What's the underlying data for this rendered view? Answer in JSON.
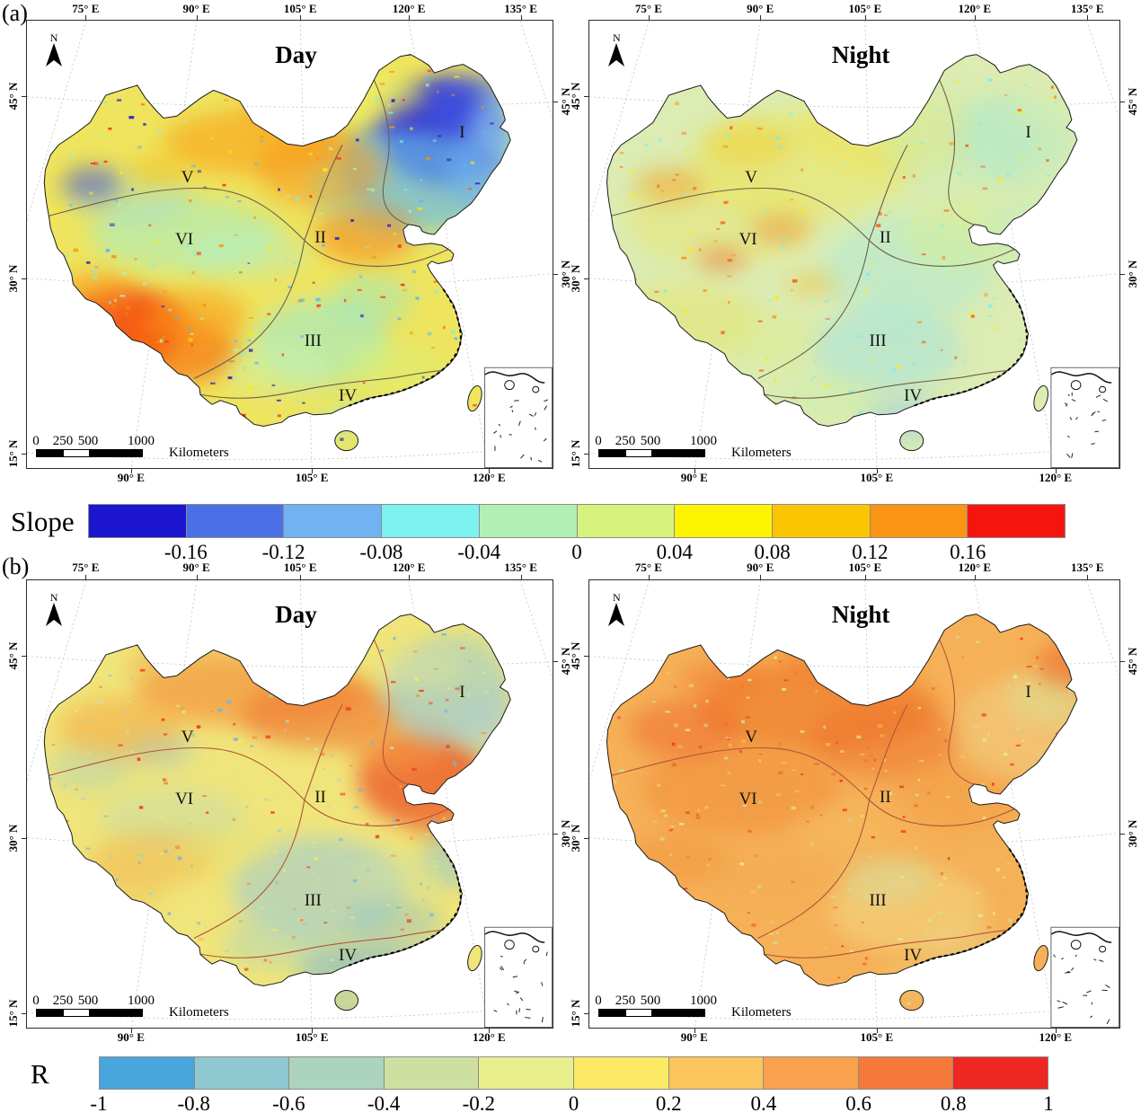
{
  "panels": [
    {
      "label": "(a)",
      "maps": [
        {
          "title": "Day"
        },
        {
          "title": "Night"
        }
      ],
      "colorbar": {
        "title": "Slope",
        "tick_labels": [
          "-0.16",
          "-0.12",
          "-0.08",
          "-0.04",
          "0",
          "0.04",
          "0.08",
          "0.12",
          "0.16"
        ],
        "segment_colors": [
          "#1b15cd",
          "#4b6fe7",
          "#70b2f2",
          "#7ef2ee",
          "#b2efb4",
          "#d7f37e",
          "#fef400",
          "#fcc502",
          "#f99414",
          "#f6150e"
        ]
      }
    },
    {
      "label": "(b)",
      "maps": [
        {
          "title": "Day"
        },
        {
          "title": "Night"
        }
      ],
      "colorbar": {
        "title": "R",
        "tick_labels": [
          "-1",
          "-0.8",
          "-0.6",
          "-0.4",
          "-0.2",
          "0",
          "0.2",
          "0.4",
          "0.6",
          "0.8",
          "1"
        ],
        "segment_colors": [
          "#4aa5dc",
          "#8fc8d1",
          "#acd3bd",
          "#cee0a1",
          "#e9ee8d",
          "#fcea64",
          "#fbc45c",
          "#f9a14c",
          "#f4793b",
          "#ee2722"
        ]
      }
    }
  ],
  "axes": {
    "top_lon_labels": [
      "75° E",
      "90° E",
      "105° E",
      "120° E",
      "135° E"
    ],
    "bottom_lon_labels": [
      "90° E",
      "105° E",
      "120° E"
    ],
    "left_lat_labels": [
      "45° N",
      "30° N",
      "15° N"
    ],
    "right_lat_labels": [
      "45° N",
      "30° N"
    ]
  },
  "north_arrow_label": "N",
  "scale_bar": {
    "tick_labels": [
      "0",
      "250",
      "500",
      "1000"
    ],
    "unit_label": "Kilometers"
  },
  "region_labels": [
    "I",
    "II",
    "III",
    "IV",
    "V",
    "VI"
  ]
}
